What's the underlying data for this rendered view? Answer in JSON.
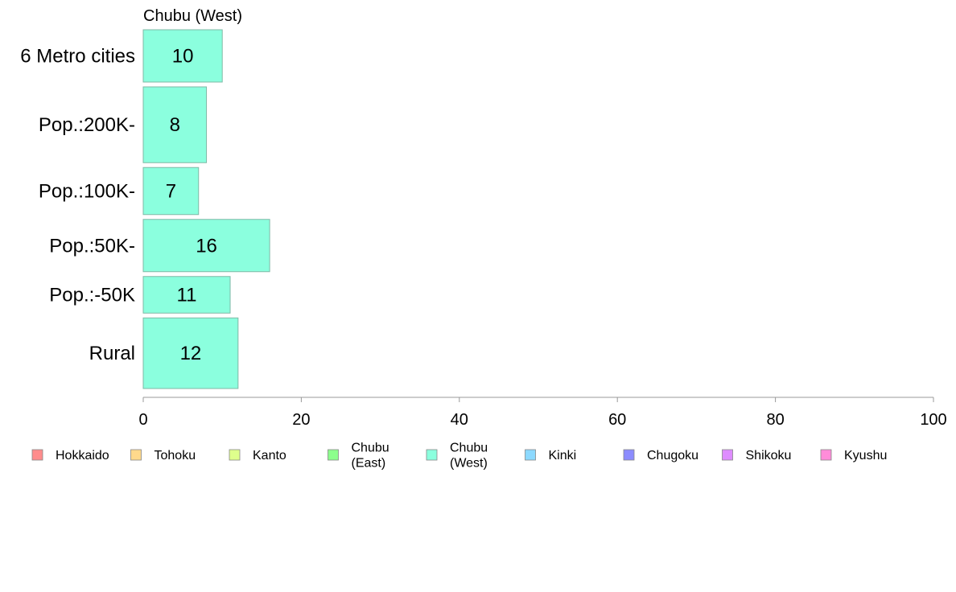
{
  "chart_data": {
    "type": "bar",
    "orientation": "horizontal",
    "title": "Chubu (West)",
    "categories": [
      "6 Metro cities",
      "Pop.:200K-",
      "Pop.:100K-",
      "Pop.:50K-",
      "Pop.:-50K",
      "Rural"
    ],
    "values": [
      10,
      8,
      7,
      16,
      11,
      12
    ],
    "bar_weights": [
      1.0,
      1.45,
      0.9,
      1.0,
      0.7,
      1.35
    ],
    "data_labels": [
      "10",
      "8",
      "7",
      "16",
      "11",
      "12"
    ],
    "xlim": [
      0,
      100
    ],
    "xticks": [
      0,
      20,
      40,
      60,
      80,
      100
    ],
    "xtick_labels": [
      "0",
      "20",
      "40",
      "60",
      "80",
      "100"
    ],
    "xlabel": "",
    "ylabel": "",
    "grid": false,
    "bar_color": "#8BFFDE",
    "bar_border": "#7FB8A6",
    "axis_color": "#999999",
    "legend_position": "bottom",
    "legend": [
      {
        "lines": [
          "Hokkaido"
        ],
        "color": "#FF8C8C"
      },
      {
        "lines": [
          "Tohoku"
        ],
        "color": "#FFD98C"
      },
      {
        "lines": [
          "Kanto"
        ],
        "color": "#DEFF8C"
      },
      {
        "lines": [
          "Chubu",
          "(East)"
        ],
        "color": "#8CFF8C"
      },
      {
        "lines": [
          "Chubu",
          "(West)"
        ],
        "color": "#8BFFDE"
      },
      {
        "lines": [
          "Kinki"
        ],
        "color": "#8CD9FF"
      },
      {
        "lines": [
          "Chugoku"
        ],
        "color": "#8C8CFF"
      },
      {
        "lines": [
          "Shikoku"
        ],
        "color": "#DE8CFF"
      },
      {
        "lines": [
          "Kyushu"
        ],
        "color": "#FF8CD9"
      }
    ]
  }
}
